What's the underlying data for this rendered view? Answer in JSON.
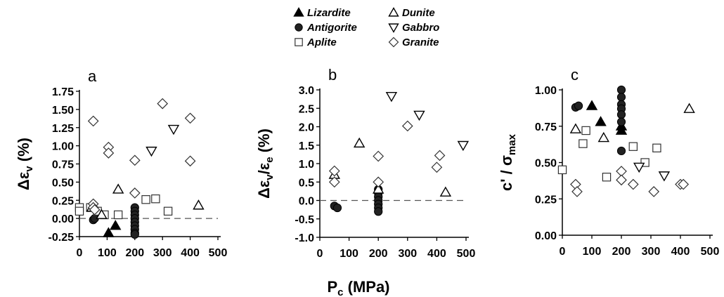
{
  "legend": [
    {
      "key": "lizardite",
      "label": "Lizardite",
      "marker": "triangle-filled"
    },
    {
      "key": "dunite",
      "label": "Dunite",
      "marker": "triangle-open"
    },
    {
      "key": "antigorite",
      "label": "Antigorite",
      "marker": "circle-filled"
    },
    {
      "key": "gabbro",
      "label": "Gabbro",
      "marker": "triangle-down-open"
    },
    {
      "key": "aplite",
      "label": "Aplite",
      "marker": "square-open"
    },
    {
      "key": "granite",
      "label": "Granite",
      "marker": "diamond-open"
    }
  ],
  "xlabel_shared": {
    "main": "P",
    "sub": "c",
    "unit": "(MPa)"
  },
  "chart_data": [
    {
      "type": "scatter",
      "panel": "a",
      "ylabel_parts": {
        "pre": "Δε",
        "sub": "v",
        "post": " (%)"
      },
      "xlim": [
        0,
        500
      ],
      "ylim": [
        -0.25,
        1.75
      ],
      "xticks": [
        "0",
        "100",
        "200",
        "300",
        "400",
        "500"
      ],
      "yticks": [
        "-0.25",
        "0.00",
        "0.25",
        "0.50",
        "0.75",
        "1.00",
        "1.25",
        "1.50",
        "1.75"
      ],
      "reference_line": 0,
      "series": [
        {
          "key": "lizardite",
          "points": [
            [
              105,
              -0.2
            ],
            [
              130,
              -0.1
            ]
          ]
        },
        {
          "key": "antigorite",
          "points": [
            [
              50,
              -0.02
            ],
            [
              55,
              0.0
            ],
            [
              200,
              0.15
            ],
            [
              200,
              0.1
            ],
            [
              200,
              0.05
            ],
            [
              200,
              0.0
            ],
            [
              200,
              -0.05
            ],
            [
              200,
              -0.1
            ],
            [
              200,
              -0.15
            ],
            [
              200,
              -0.2
            ],
            [
              200,
              -0.22
            ]
          ]
        },
        {
          "key": "aplite",
          "points": [
            [
              0,
              0.15
            ],
            [
              0,
              0.1
            ],
            [
              40,
              0.15
            ],
            [
              65,
              0.1
            ],
            [
              90,
              0.05
            ],
            [
              140,
              0.05
            ],
            [
              240,
              0.26
            ],
            [
              275,
              0.27
            ],
            [
              320,
              0.1
            ]
          ]
        },
        {
          "key": "dunite",
          "points": [
            [
              45,
              0.15
            ],
            [
              80,
              0.05
            ],
            [
              140,
              0.4
            ],
            [
              430,
              0.18
            ]
          ]
        },
        {
          "key": "gabbro",
          "points": [
            [
              260,
              0.93
            ],
            [
              340,
              1.23
            ]
          ]
        },
        {
          "key": "granite",
          "points": [
            [
              50,
              1.34
            ],
            [
              50,
              0.2
            ],
            [
              50,
              0.15
            ],
            [
              55,
              0.12
            ],
            [
              105,
              0.98
            ],
            [
              105,
              0.9
            ],
            [
              200,
              0.8
            ],
            [
              200,
              0.35
            ],
            [
              300,
              1.58
            ],
            [
              400,
              1.38
            ],
            [
              400,
              0.79
            ]
          ]
        }
      ]
    },
    {
      "type": "scatter",
      "panel": "b",
      "ylabel_parts": {
        "pre": "Δε",
        "sub": "v",
        "mid": "/ε",
        "sub2": "e",
        "post": " (%)"
      },
      "xlim": [
        0,
        500
      ],
      "ylim": [
        -1.0,
        3.0
      ],
      "xticks": [
        "0",
        "100",
        "200",
        "300",
        "400",
        "500"
      ],
      "yticks": [
        "-1.0",
        "-0.5",
        "0.0",
        "0.5",
        "1.0",
        "1.5",
        "2.0",
        "2.5",
        "3.0"
      ],
      "reference_line": 0,
      "series": [
        {
          "key": "lizardite",
          "points": []
        },
        {
          "key": "antigorite",
          "points": [
            [
              50,
              -0.15
            ],
            [
              60,
              -0.2
            ],
            [
              200,
              0.3
            ],
            [
              200,
              0.2
            ],
            [
              200,
              0.1
            ],
            [
              200,
              0.0
            ],
            [
              200,
              -0.1
            ],
            [
              200,
              -0.2
            ],
            [
              200,
              -0.3
            ]
          ]
        },
        {
          "key": "aplite",
          "points": []
        },
        {
          "key": "dunite",
          "points": [
            [
              50,
              0.7
            ],
            [
              135,
              1.55
            ],
            [
              200,
              0.3
            ],
            [
              430,
              0.22
            ]
          ]
        },
        {
          "key": "gabbro",
          "points": [
            [
              245,
              2.83
            ],
            [
              340,
              2.32
            ],
            [
              490,
              1.5
            ]
          ]
        },
        {
          "key": "granite",
          "points": [
            [
              50,
              0.8
            ],
            [
              50,
              0.5
            ],
            [
              200,
              1.2
            ],
            [
              200,
              0.5
            ],
            [
              300,
              2.02
            ],
            [
              400,
              0.9
            ],
            [
              410,
              1.22
            ]
          ]
        }
      ]
    },
    {
      "type": "scatter",
      "panel": "c",
      "ylabel_parts": {
        "pre": "c' / σ",
        "sub": "max",
        "post": ""
      },
      "xlim": [
        0,
        500
      ],
      "ylim": [
        0.0,
        1.0
      ],
      "xticks": [
        "0",
        "100",
        "200",
        "300",
        "400",
        "500"
      ],
      "yticks": [
        "0.00",
        "0.25",
        "0.50",
        "0.75",
        "1.00"
      ],
      "reference_line": null,
      "series": [
        {
          "key": "lizardite",
          "points": [
            [
              100,
              0.89
            ],
            [
              130,
              0.78
            ],
            [
              200,
              0.75
            ],
            [
              200,
              0.72
            ]
          ]
        },
        {
          "key": "antigorite",
          "points": [
            [
              45,
              0.88
            ],
            [
              55,
              0.89
            ],
            [
              200,
              1.0
            ],
            [
              200,
              0.95
            ],
            [
              200,
              0.9
            ],
            [
              200,
              0.87
            ],
            [
              200,
              0.83
            ],
            [
              200,
              0.78
            ],
            [
              200,
              0.58
            ]
          ]
        },
        {
          "key": "aplite",
          "points": [
            [
              0,
              0.45
            ],
            [
              70,
              0.63
            ],
            [
              80,
              0.72
            ],
            [
              150,
              0.4
            ],
            [
              240,
              0.61
            ],
            [
              280,
              0.5
            ],
            [
              320,
              0.6
            ]
          ]
        },
        {
          "key": "dunite",
          "points": [
            [
              45,
              0.73
            ],
            [
              140,
              0.67
            ],
            [
              430,
              0.87
            ]
          ]
        },
        {
          "key": "gabbro",
          "points": [
            [
              260,
              0.47
            ],
            [
              345,
              0.41
            ]
          ]
        },
        {
          "key": "granite",
          "points": [
            [
              45,
              0.35
            ],
            [
              50,
              0.3
            ],
            [
              200,
              0.44
            ],
            [
              200,
              0.38
            ],
            [
              240,
              0.35
            ],
            [
              310,
              0.3
            ],
            [
              400,
              0.35
            ],
            [
              410,
              0.35
            ]
          ]
        }
      ]
    }
  ]
}
